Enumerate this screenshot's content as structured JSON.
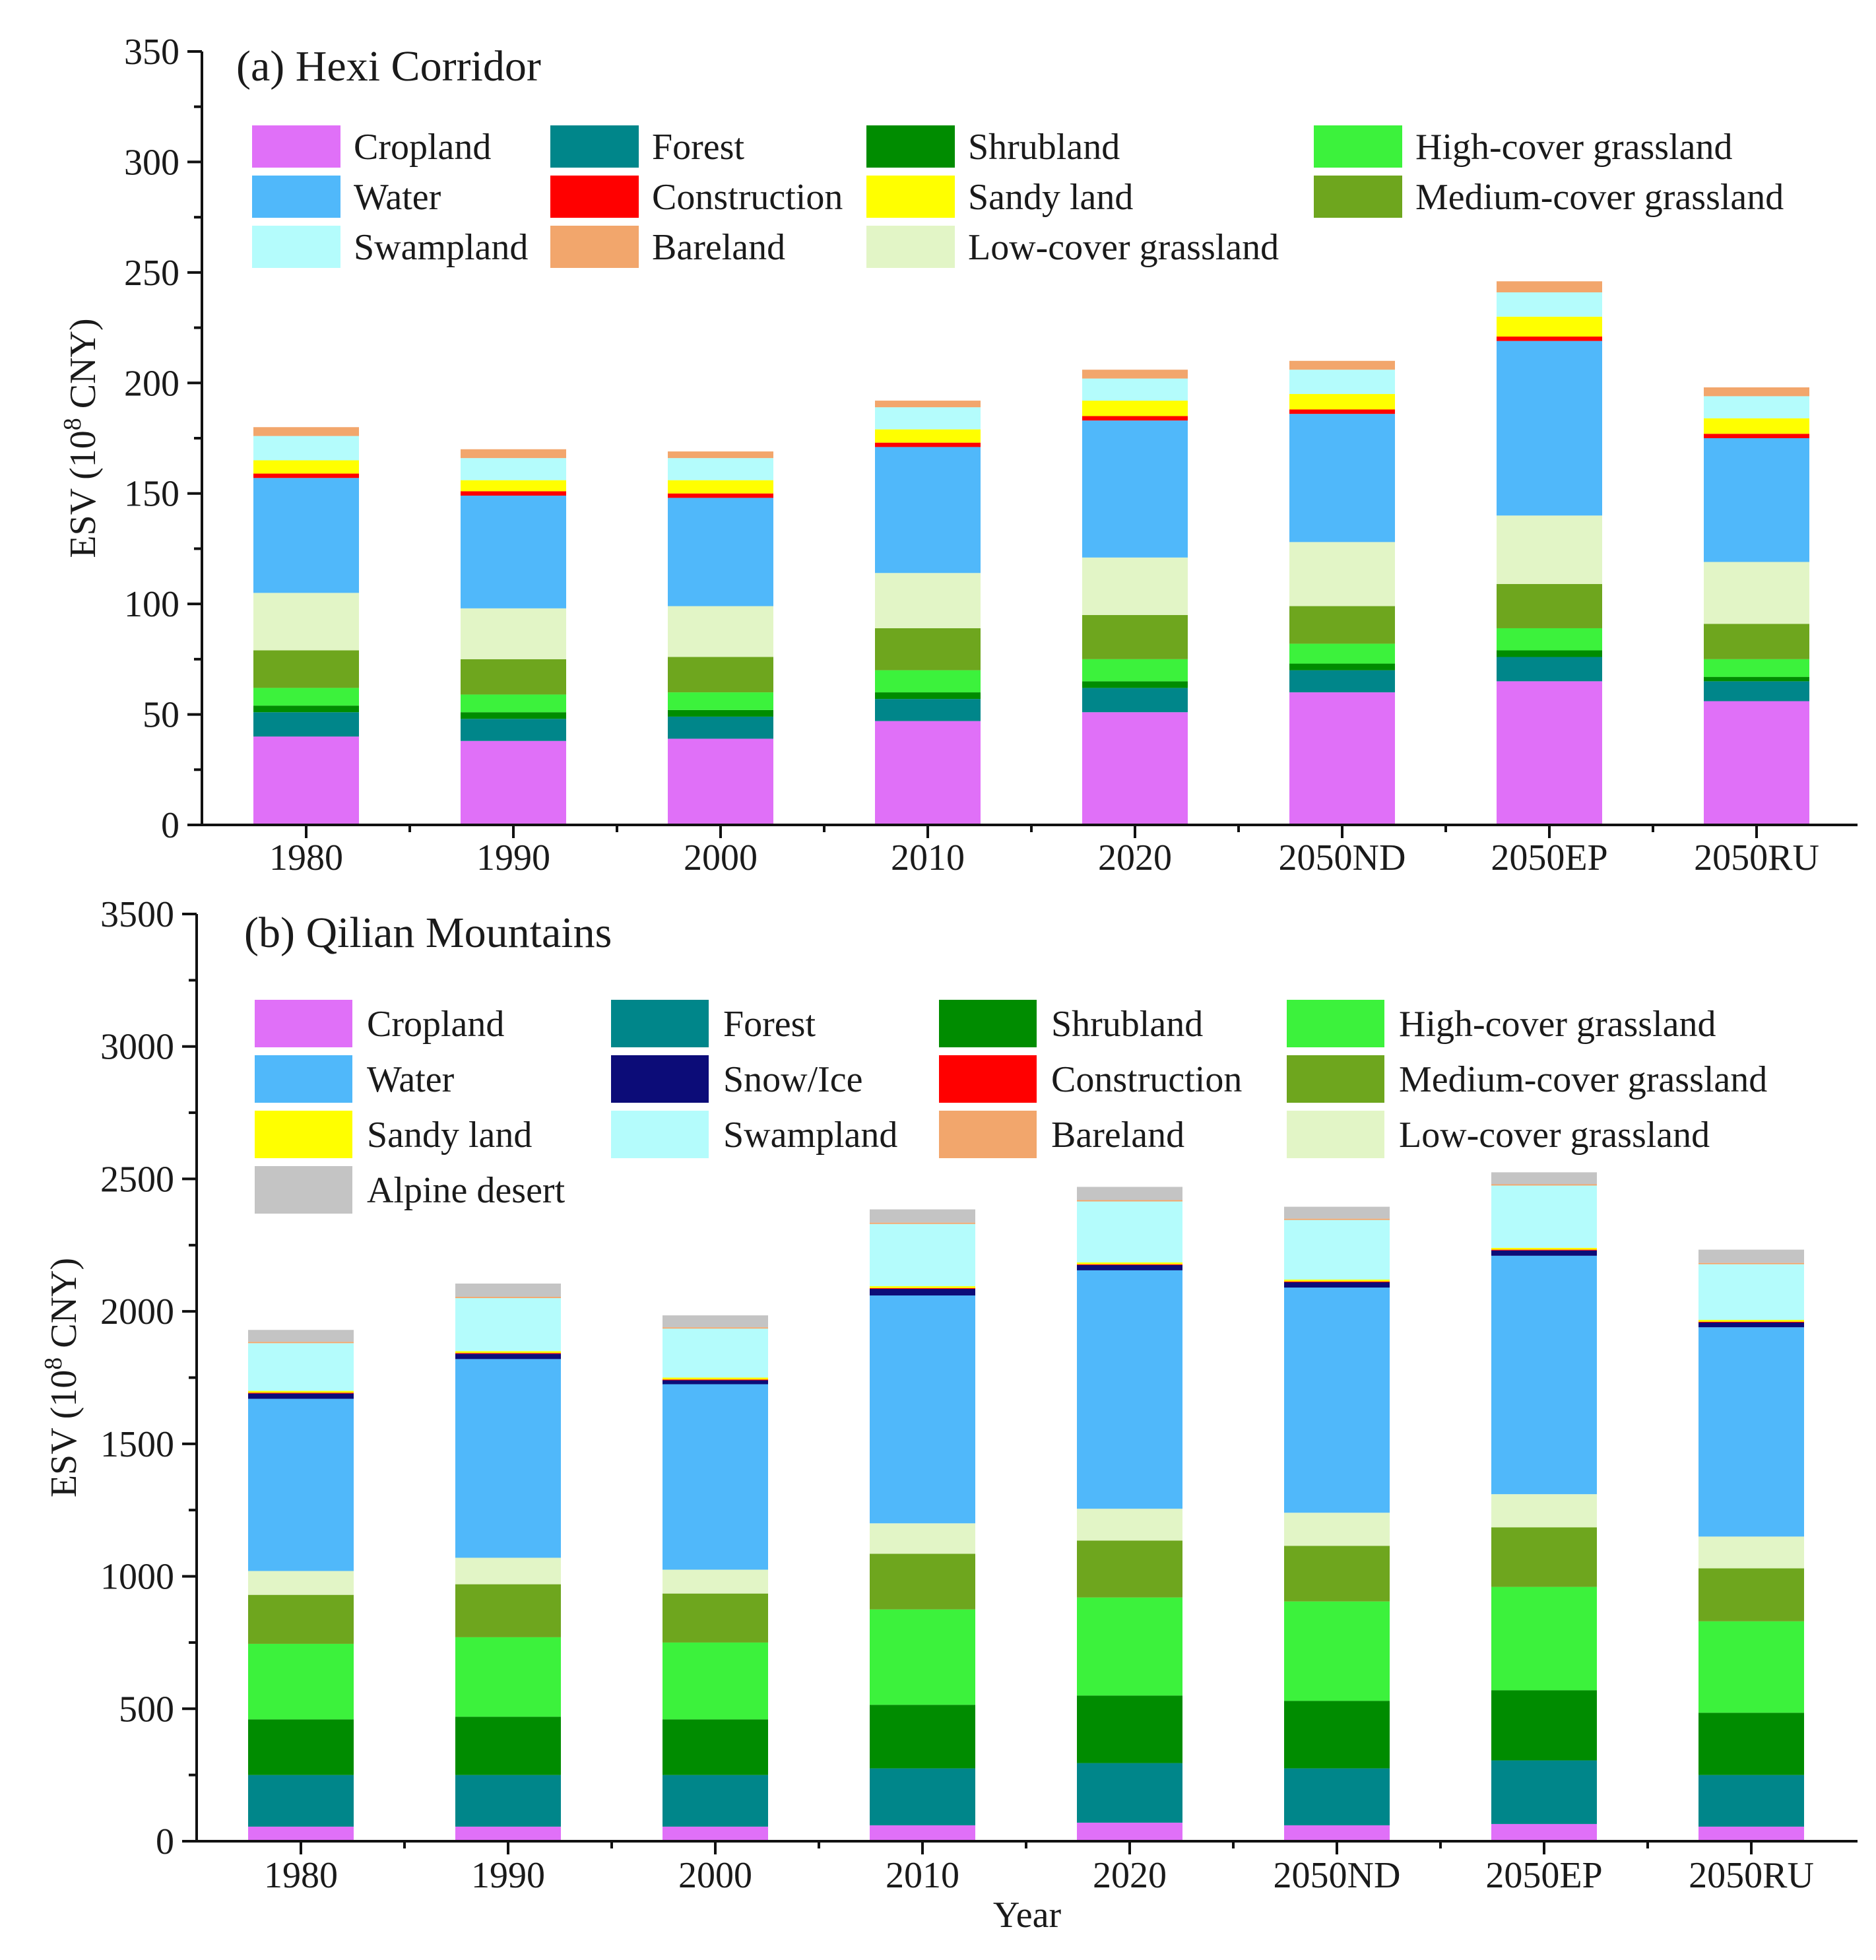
{
  "colors": {
    "Cropland": "#e070f8",
    "Forest": "#00868a",
    "Shrubland": "#008c00",
    "High-cover grassland": "#3cf23c",
    "Medium-cover grassland": "#6ea61e",
    "Low-cover grassland": "#e2f5c6",
    "Water": "#50b8fa",
    "Snow/Ice": "#0c0c78",
    "Construction": "#ff0000",
    "Sandy land": "#ffff00",
    "Swampland": "#b4fcfc",
    "Bareland": "#f2a66c",
    "Alpine desert": "#c4c4c4"
  },
  "chart_data": [
    {
      "type": "bar",
      "stacked": true,
      "title": "(a) Hexi Corridor",
      "xlabel": "",
      "ylabel": "ESV (10^8 CNY)",
      "ylabel_main": "ESV (10",
      "ylabel_exp": "8",
      "ylabel_tail": " CNY)",
      "ylim": [
        0,
        350
      ],
      "yticks": [
        0,
        50,
        100,
        150,
        200,
        250,
        300,
        350
      ],
      "categories": [
        "1980",
        "1990",
        "2000",
        "2010",
        "2020",
        "2050ND",
        "2050EP",
        "2050RU"
      ],
      "legend": [
        "Cropland",
        "Forest",
        "Shrubland",
        "High-cover grassland",
        "Water",
        "Construction",
        "Sandy land",
        "Medium-cover grassland",
        "Swampland",
        "Bareland",
        "Low-cover grassland"
      ],
      "series": [
        {
          "name": "Cropland",
          "values": [
            40,
            38,
            39,
            47,
            51,
            60,
            65,
            56
          ]
        },
        {
          "name": "Forest",
          "values": [
            11,
            10,
            10,
            10,
            11,
            10,
            11,
            9
          ]
        },
        {
          "name": "Shrubland",
          "values": [
            3,
            3,
            3,
            3,
            3,
            3,
            3,
            2
          ]
        },
        {
          "name": "High-cover grassland",
          "values": [
            8,
            8,
            8,
            10,
            10,
            9,
            10,
            8
          ]
        },
        {
          "name": "Medium-cover grassland",
          "values": [
            17,
            16,
            16,
            19,
            20,
            17,
            20,
            16
          ]
        },
        {
          "name": "Low-cover grassland",
          "values": [
            26,
            23,
            23,
            25,
            26,
            29,
            31,
            28
          ]
        },
        {
          "name": "Water",
          "values": [
            52,
            51,
            49,
            57,
            62,
            58,
            79,
            56
          ]
        },
        {
          "name": "Construction",
          "values": [
            2,
            2,
            2,
            2,
            2,
            2,
            2,
            2
          ]
        },
        {
          "name": "Sandy land",
          "values": [
            6,
            5,
            6,
            6,
            7,
            7,
            9,
            7
          ]
        },
        {
          "name": "Swampland",
          "values": [
            11,
            10,
            10,
            10,
            10,
            11,
            11,
            10
          ]
        },
        {
          "name": "Bareland",
          "values": [
            4,
            4,
            3,
            3,
            4,
            4,
            5,
            4
          ]
        }
      ]
    },
    {
      "type": "bar",
      "stacked": true,
      "title": "(b) Qilian Mountains",
      "xlabel": "Year",
      "ylabel": "ESV (10^8 CNY)",
      "ylabel_main": "ESV (10",
      "ylabel_exp": "8",
      "ylabel_tail": " CNY)",
      "ylim": [
        0,
        3500
      ],
      "yticks": [
        0,
        500,
        1000,
        1500,
        2000,
        2500,
        3000,
        3500
      ],
      "categories": [
        "1980",
        "1990",
        "2000",
        "2010",
        "2020",
        "2050ND",
        "2050EP",
        "2050RU"
      ],
      "legend": [
        "Cropland",
        "Forest",
        "Shrubland",
        "High-cover grassland",
        "Water",
        "Snow/Ice",
        "Construction",
        "Medium-cover grassland",
        "Sandy land",
        "Swampland",
        "Bareland",
        "Low-cover grassland",
        "Alpine desert"
      ],
      "series": [
        {
          "name": "Cropland",
          "values": [
            55,
            55,
            55,
            60,
            70,
            60,
            65,
            55
          ]
        },
        {
          "name": "Forest",
          "values": [
            195,
            195,
            195,
            215,
            225,
            215,
            240,
            195
          ]
        },
        {
          "name": "Shrubland",
          "values": [
            210,
            220,
            210,
            240,
            255,
            255,
            265,
            235
          ]
        },
        {
          "name": "High-cover grassland",
          "values": [
            285,
            300,
            290,
            360,
            370,
            375,
            390,
            345
          ]
        },
        {
          "name": "Medium-cover grassland",
          "values": [
            185,
            200,
            185,
            210,
            215,
            210,
            225,
            200
          ]
        },
        {
          "name": "Low-cover grassland",
          "values": [
            90,
            100,
            90,
            115,
            120,
            125,
            125,
            120
          ]
        },
        {
          "name": "Water",
          "values": [
            650,
            750,
            700,
            860,
            900,
            850,
            900,
            790
          ]
        },
        {
          "name": "Snow/Ice",
          "values": [
            20,
            20,
            15,
            25,
            20,
            20,
            20,
            18
          ]
        },
        {
          "name": "Construction",
          "values": [
            3,
            3,
            3,
            3,
            3,
            3,
            3,
            3
          ]
        },
        {
          "name": "Sandy land",
          "values": [
            7,
            7,
            7,
            7,
            7,
            7,
            7,
            7
          ]
        },
        {
          "name": "Swampland",
          "values": [
            180,
            200,
            185,
            235,
            230,
            225,
            235,
            210
          ]
        },
        {
          "name": "Bareland",
          "values": [
            5,
            5,
            5,
            5,
            5,
            5,
            5,
            5
          ]
        },
        {
          "name": "Alpine desert",
          "values": [
            45,
            50,
            45,
            50,
            50,
            45,
            45,
            50
          ]
        }
      ]
    }
  ]
}
